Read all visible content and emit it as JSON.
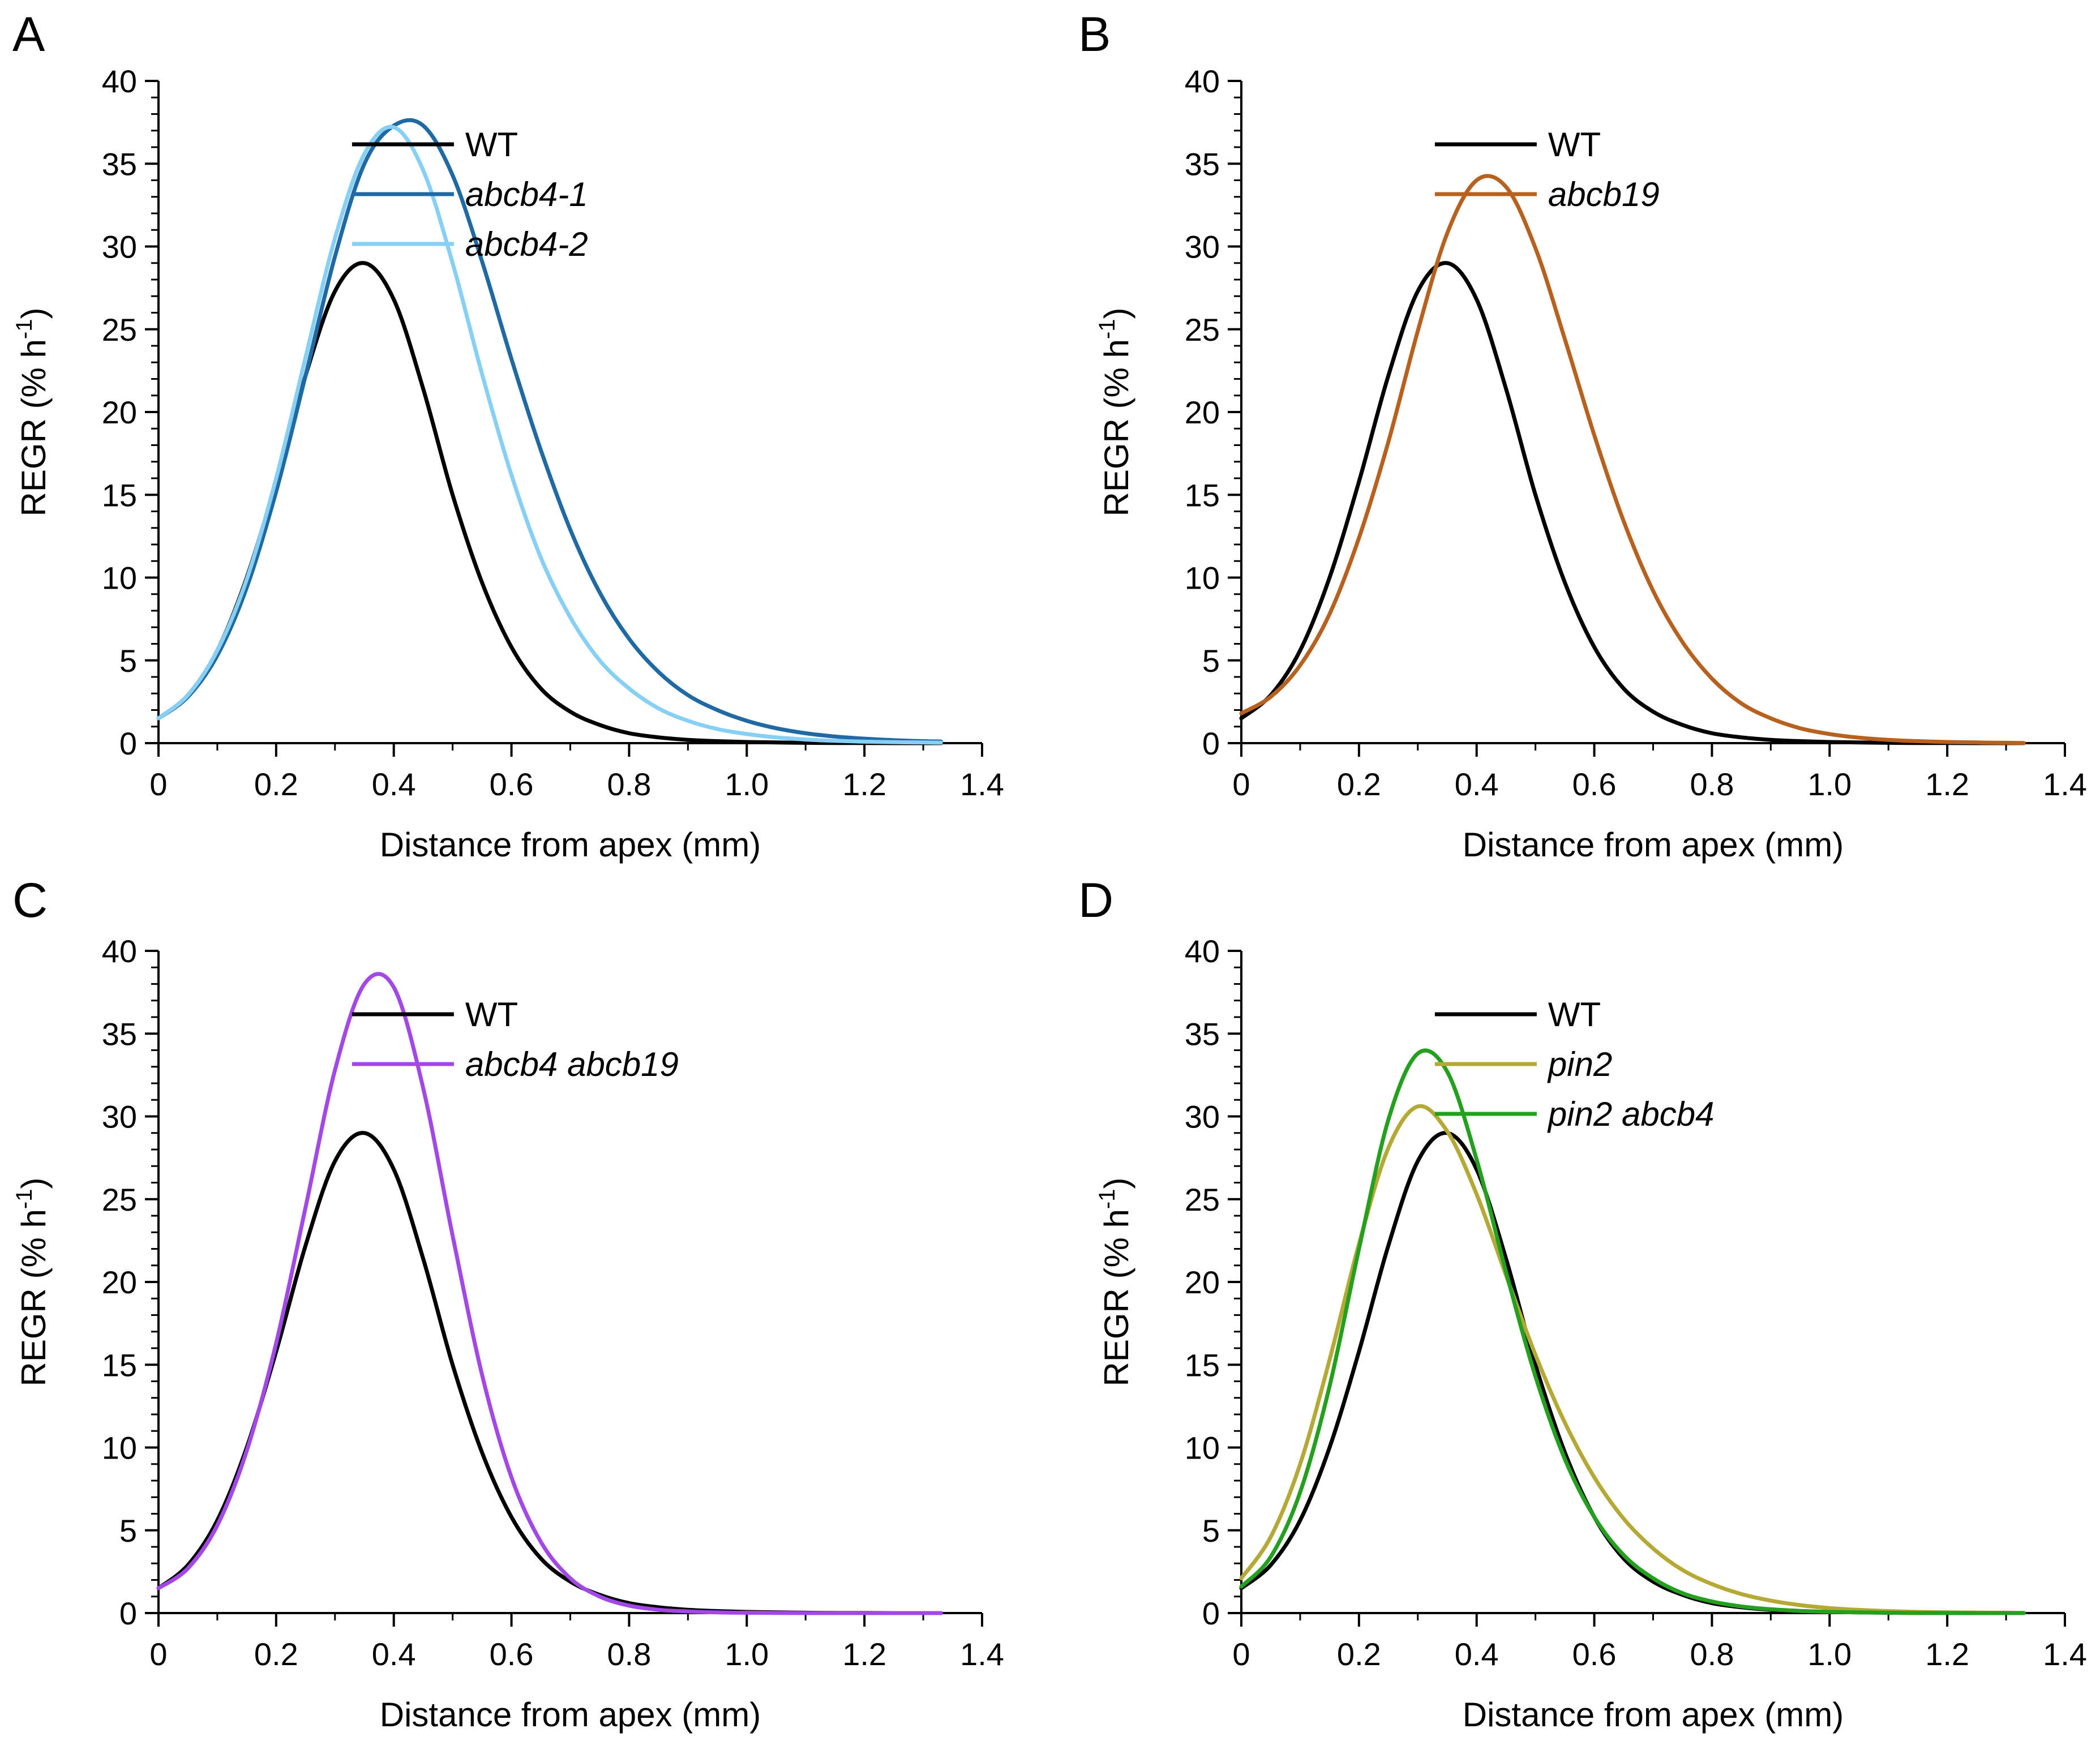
{
  "figure": {
    "panels": [
      "A",
      "B",
      "C",
      "D"
    ]
  },
  "chart_data": [
    {
      "panel": "A",
      "type": "line",
      "title": "",
      "xlabel": "Distance from apex (mm)",
      "ylabel": "REGR (% h",
      "ylabel_sup": "-1",
      "ylabel_close": ")",
      "xlim": [
        0,
        1.4
      ],
      "ylim": [
        0,
        40
      ],
      "xticks": [
        0,
        0.2,
        0.4,
        0.6,
        0.8,
        1.0,
        1.2,
        1.4
      ],
      "xtick_labels": [
        "0",
        "0.2",
        "0.4",
        "0.6",
        "0.8",
        "1.0",
        "1.2",
        "1.4"
      ],
      "yticks": [
        0,
        5,
        10,
        15,
        20,
        25,
        30,
        35,
        40
      ],
      "ytick_labels": [
        "0",
        "5",
        "10",
        "15",
        "20",
        "25",
        "30",
        "35",
        "40"
      ],
      "legend_position": "top-right",
      "x": [
        0.0,
        0.05,
        0.1,
        0.15,
        0.2,
        0.25,
        0.3,
        0.35,
        0.4,
        0.45,
        0.5,
        0.55,
        0.6,
        0.65,
        0.7,
        0.75,
        0.8,
        0.85,
        0.9,
        0.95,
        1.0,
        1.05,
        1.1,
        1.15,
        1.2,
        1.25,
        1.3,
        1.33
      ],
      "series": [
        {
          "name": "WT",
          "italic": false,
          "color": "#000000",
          "values": [
            1.5,
            2.9,
            5.6,
            10.0,
            15.8,
            22.2,
            27.3,
            29.0,
            26.8,
            21.4,
            15.0,
            9.7,
            5.8,
            3.3,
            1.9,
            1.1,
            0.6,
            0.35,
            0.2,
            0.12,
            0.07,
            0.04,
            0.02,
            0.01,
            0.01,
            0.0,
            0.0,
            0.0
          ]
        },
        {
          "name": "abcb4-1",
          "italic": true,
          "color": "#1f6aa5",
          "values": [
            1.5,
            2.8,
            5.3,
            9.4,
            15.2,
            22.2,
            29.4,
            35.0,
            37.3,
            37.3,
            34.3,
            29.1,
            23.2,
            17.7,
            12.9,
            9.1,
            6.3,
            4.3,
            2.9,
            2.0,
            1.35,
            0.9,
            0.6,
            0.4,
            0.27,
            0.18,
            0.12,
            0.1
          ]
        },
        {
          "name": "abcb4-2",
          "italic": true,
          "color": "#86d0f5",
          "values": [
            1.5,
            2.9,
            5.6,
            9.9,
            16.0,
            23.3,
            30.5,
            35.6,
            37.2,
            34.6,
            29.0,
            22.3,
            16.2,
            11.2,
            7.6,
            5.0,
            3.3,
            2.1,
            1.35,
            0.85,
            0.55,
            0.35,
            0.22,
            0.14,
            0.09,
            0.06,
            0.04,
            0.03
          ]
        }
      ]
    },
    {
      "panel": "B",
      "type": "line",
      "title": "",
      "xlabel": "Distance from apex (mm)",
      "ylabel": "REGR (% h",
      "ylabel_sup": "-1",
      "ylabel_close": ")",
      "xlim": [
        0,
        1.4
      ],
      "ylim": [
        0,
        40
      ],
      "xticks": [
        0,
        0.2,
        0.4,
        0.6,
        0.8,
        1.0,
        1.2,
        1.4
      ],
      "xtick_labels": [
        "0",
        "0.2",
        "0.4",
        "0.6",
        "0.8",
        "1.0",
        "1.2",
        "1.4"
      ],
      "yticks": [
        0,
        5,
        10,
        15,
        20,
        25,
        30,
        35,
        40
      ],
      "ytick_labels": [
        "0",
        "5",
        "10",
        "15",
        "20",
        "25",
        "30",
        "35",
        "40"
      ],
      "legend_position": "top-right",
      "x": [
        0.0,
        0.05,
        0.1,
        0.15,
        0.2,
        0.25,
        0.3,
        0.35,
        0.4,
        0.45,
        0.5,
        0.55,
        0.6,
        0.65,
        0.7,
        0.75,
        0.8,
        0.85,
        0.9,
        0.95,
        1.0,
        1.05,
        1.1,
        1.15,
        1.2,
        1.25,
        1.3,
        1.33
      ],
      "series": [
        {
          "name": "WT",
          "italic": false,
          "color": "#000000",
          "values": [
            1.5,
            2.9,
            5.6,
            10.0,
            15.8,
            22.2,
            27.3,
            29.0,
            26.8,
            21.4,
            15.0,
            9.7,
            5.8,
            3.3,
            1.9,
            1.1,
            0.6,
            0.35,
            0.2,
            0.12,
            0.07,
            0.04,
            0.02,
            0.01,
            0.01,
            0.0,
            0.0,
            0.0
          ]
        },
        {
          "name": "abcb19",
          "italic": true,
          "color": "#b8611e",
          "values": [
            1.8,
            2.8,
            4.7,
            7.8,
            12.4,
            18.2,
            24.9,
            30.8,
            34.0,
            33.6,
            29.9,
            24.4,
            18.6,
            13.4,
            9.2,
            6.1,
            3.9,
            2.4,
            1.5,
            0.9,
            0.55,
            0.33,
            0.2,
            0.12,
            0.07,
            0.04,
            0.02,
            0.01
          ]
        }
      ]
    },
    {
      "panel": "C",
      "type": "line",
      "title": "",
      "xlabel": "Distance from apex (mm)",
      "ylabel": "REGR (% h",
      "ylabel_sup": "-1",
      "ylabel_close": ")",
      "xlim": [
        0,
        1.4
      ],
      "ylim": [
        0,
        40
      ],
      "xticks": [
        0,
        0.2,
        0.4,
        0.6,
        0.8,
        1.0,
        1.2,
        1.4
      ],
      "xtick_labels": [
        "0",
        "0.2",
        "0.4",
        "0.6",
        "0.8",
        "1.0",
        "1.2",
        "1.4"
      ],
      "yticks": [
        0,
        5,
        10,
        15,
        20,
        25,
        30,
        35,
        40
      ],
      "ytick_labels": [
        "0",
        "5",
        "10",
        "15",
        "20",
        "25",
        "30",
        "35",
        "40"
      ],
      "legend_position": "top-right",
      "x": [
        0.0,
        0.05,
        0.1,
        0.15,
        0.2,
        0.25,
        0.3,
        0.35,
        0.4,
        0.45,
        0.5,
        0.55,
        0.6,
        0.65,
        0.7,
        0.75,
        0.8,
        0.85,
        0.9,
        0.95,
        1.0,
        1.05,
        1.1,
        1.15,
        1.2,
        1.25,
        1.3,
        1.33
      ],
      "series": [
        {
          "name": "WT",
          "italic": false,
          "color": "#000000",
          "values": [
            1.5,
            2.9,
            5.6,
            10.0,
            15.8,
            22.2,
            27.3,
            29.0,
            26.8,
            21.4,
            15.0,
            9.7,
            5.8,
            3.3,
            1.9,
            1.1,
            0.6,
            0.35,
            0.2,
            0.12,
            0.07,
            0.04,
            0.02,
            0.01,
            0.01,
            0.0,
            0.0,
            0.0
          ]
        },
        {
          "name": "abcb4 abcb19",
          "italic": true,
          "color": "#a347e8",
          "values": [
            1.5,
            2.7,
            5.3,
            9.8,
            16.3,
            24.5,
            32.8,
            38.0,
            37.8,
            31.7,
            22.8,
            14.4,
            8.2,
            4.3,
            2.1,
            1.0,
            0.45,
            0.2,
            0.1,
            0.04,
            0.02,
            0.01,
            0.0,
            0.0,
            0.0,
            0.0,
            0.0,
            0.0
          ]
        }
      ]
    },
    {
      "panel": "D",
      "type": "line",
      "title": "",
      "xlabel": "Distance from apex (mm)",
      "ylabel": "REGR (% h",
      "ylabel_sup": "-1",
      "ylabel_close": ")",
      "xlim": [
        0,
        1.4
      ],
      "ylim": [
        0,
        40
      ],
      "xticks": [
        0,
        0.2,
        0.4,
        0.6,
        0.8,
        1.0,
        1.2,
        1.4
      ],
      "xtick_labels": [
        "0",
        "0.2",
        "0.4",
        "0.6",
        "0.8",
        "1.0",
        "1.2",
        "1.4"
      ],
      "yticks": [
        0,
        5,
        10,
        15,
        20,
        25,
        30,
        35,
        40
      ],
      "ytick_labels": [
        "0",
        "5",
        "10",
        "15",
        "20",
        "25",
        "30",
        "35",
        "40"
      ],
      "legend_position": "top-right",
      "x": [
        0.0,
        0.05,
        0.1,
        0.15,
        0.2,
        0.25,
        0.3,
        0.35,
        0.4,
        0.45,
        0.5,
        0.55,
        0.6,
        0.65,
        0.7,
        0.75,
        0.8,
        0.85,
        0.9,
        0.95,
        1.0,
        1.05,
        1.1,
        1.15,
        1.2,
        1.25,
        1.3,
        1.33
      ],
      "series": [
        {
          "name": "WT",
          "italic": false,
          "color": "#000000",
          "values": [
            1.5,
            2.9,
            5.6,
            10.0,
            15.8,
            22.2,
            27.3,
            29.0,
            26.8,
            21.4,
            15.0,
            9.7,
            5.8,
            3.3,
            1.9,
            1.1,
            0.6,
            0.35,
            0.2,
            0.12,
            0.07,
            0.04,
            0.02,
            0.01,
            0.01,
            0.0,
            0.0,
            0.0
          ]
        },
        {
          "name": "pin2",
          "italic": true,
          "color": "#b5a935",
          "values": [
            2.1,
            4.6,
            9.0,
            15.3,
            22.3,
            28.1,
            30.6,
            29.1,
            25.3,
            20.4,
            15.6,
            11.5,
            8.2,
            5.7,
            3.9,
            2.6,
            1.75,
            1.15,
            0.75,
            0.48,
            0.3,
            0.19,
            0.12,
            0.07,
            0.04,
            0.03,
            0.02,
            0.01
          ]
        },
        {
          "name": "pin2 abcb4",
          "italic": true,
          "color": "#22a01e",
          "values": [
            1.6,
            3.4,
            7.3,
            13.7,
            22.0,
            29.8,
            33.8,
            32.7,
            27.4,
            20.6,
            14.3,
            9.3,
            5.8,
            3.5,
            2.1,
            1.2,
            0.7,
            0.4,
            0.23,
            0.13,
            0.07,
            0.04,
            0.02,
            0.01,
            0.01,
            0.0,
            0.0,
            0.0
          ]
        }
      ]
    }
  ]
}
